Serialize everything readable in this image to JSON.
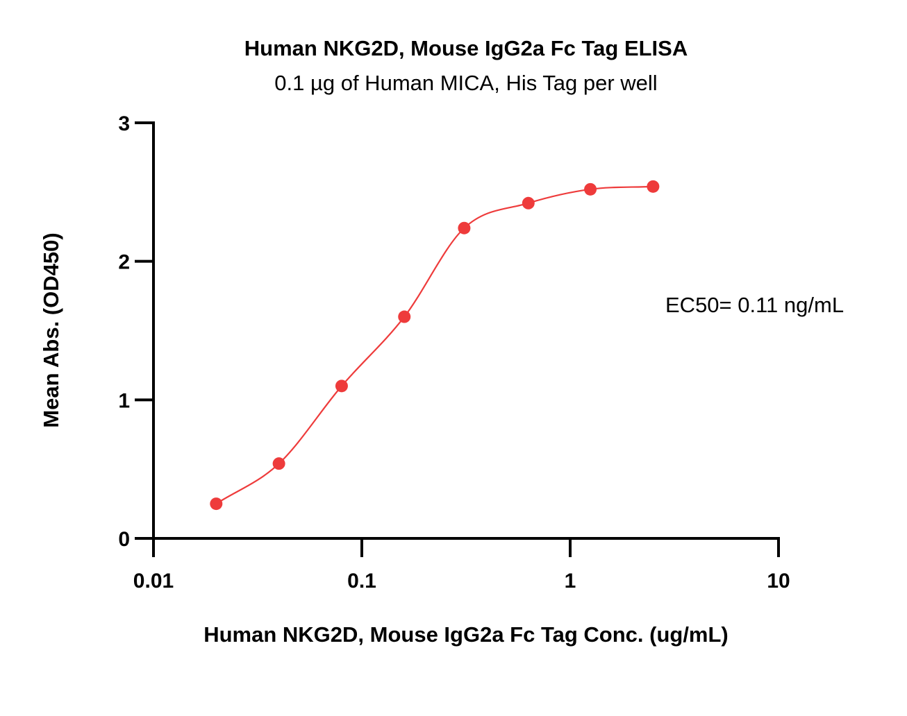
{
  "chart_data": {
    "type": "scatter",
    "title": "Human NKG2D, Mouse IgG2a Fc Tag ELISA",
    "subtitle": "0.1 µg of Human MICA, His Tag per well",
    "xlabel": "Human NKG2D, Mouse IgG2a Fc Tag Conc. (ug/mL)",
    "ylabel": "Mean Abs. (OD450)",
    "xscale": "log",
    "xlim": [
      0.01,
      10
    ],
    "ylim": [
      0,
      3
    ],
    "x_ticks": [
      0.01,
      0.1,
      1,
      10
    ],
    "x_tick_labels": [
      "0.01",
      "0.1",
      "1",
      "10"
    ],
    "y_ticks": [
      0,
      1,
      2,
      3
    ],
    "y_tick_labels": [
      "0",
      "1",
      "2",
      "3"
    ],
    "grid": false,
    "series": [
      {
        "x": [
          0.02,
          0.04,
          0.08,
          0.16,
          0.31,
          0.63,
          1.25,
          2.5
        ],
        "y": [
          0.25,
          0.54,
          1.1,
          1.6,
          2.24,
          2.42,
          2.52,
          2.54
        ],
        "color": "#ee3b3b",
        "fit": "4PL"
      }
    ],
    "annotation": "EC50= 0.11 ng/mL"
  }
}
